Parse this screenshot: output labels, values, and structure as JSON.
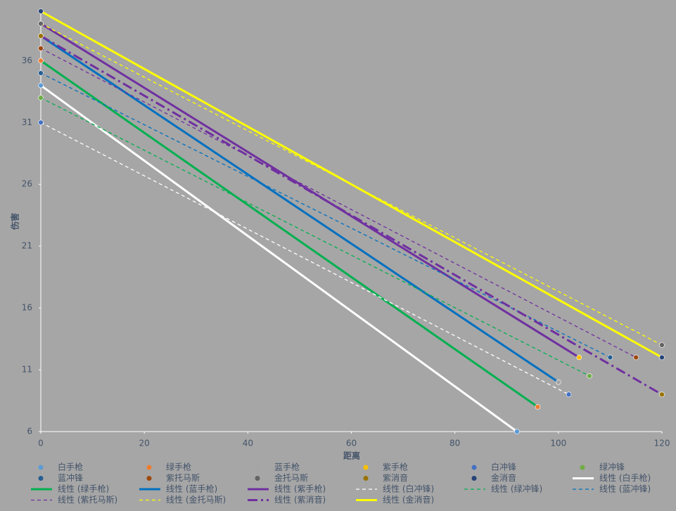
{
  "chart_data": {
    "type": "scatter",
    "x_label": "距离",
    "y_label": "伤害",
    "xlim": [
      0,
      120
    ],
    "xticks": [
      0,
      20,
      40,
      60,
      80,
      100,
      120
    ],
    "ylim": [
      6,
      40
    ],
    "yticks": [
      6,
      11,
      16,
      21,
      26,
      31,
      36
    ],
    "legend": "bottom",
    "series": [
      {
        "name": "白手枪",
        "color": "#5b9bd5",
        "x": [
          0,
          92
        ],
        "values": [
          34,
          6
        ],
        "trendline": {
          "name": "线性 (白手枪)",
          "color": "#ffffff",
          "dash": "solid",
          "weight": "heavy"
        }
      },
      {
        "name": "绿手枪",
        "color": "#ed7d31",
        "x": [
          0,
          96
        ],
        "values": [
          36,
          8
        ],
        "trendline": {
          "name": "线性 (绿手枪)",
          "color": "#00b050",
          "dash": "solid",
          "weight": "heavy"
        }
      },
      {
        "name": "蓝手枪",
        "color": "#a5a5a5",
        "x": [
          0,
          100
        ],
        "values": [
          38,
          10
        ],
        "trendline": {
          "name": "线性 (蓝手枪)",
          "color": "#0070c0",
          "dash": "solid",
          "weight": "heavy"
        }
      },
      {
        "name": "紫手枪",
        "color": "#ffc000",
        "x": [
          0,
          104
        ],
        "values": [
          39,
          12
        ],
        "trendline": {
          "name": "线性 (紫手枪)",
          "color": "#7030a0",
          "dash": "solid",
          "weight": "heavy"
        }
      },
      {
        "name": "白冲锋",
        "color": "#4472c4",
        "x": [
          0,
          102
        ],
        "values": [
          31,
          9
        ],
        "trendline": {
          "name": "线性 (白冲锋)",
          "color": "#ffffff",
          "dash": "dashed",
          "weight": "light"
        }
      },
      {
        "name": "绿冲锋",
        "color": "#70ad47",
        "x": [
          0,
          106
        ],
        "values": [
          33,
          10.5
        ],
        "trendline": {
          "name": "线性 (绿冲锋)",
          "color": "#00b050",
          "dash": "dashed",
          "weight": "light"
        }
      },
      {
        "name": "蓝冲锋",
        "color": "#255e91",
        "x": [
          0,
          110
        ],
        "values": [
          35,
          12
        ],
        "trendline": {
          "name": "线性 (蓝冲锋)",
          "color": "#0070c0",
          "dash": "dashed",
          "weight": "light"
        }
      },
      {
        "name": "紫托马斯",
        "color": "#9e480e",
        "x": [
          0,
          115
        ],
        "values": [
          37,
          12
        ],
        "trendline": {
          "name": "线性 (紫托马斯)",
          "color": "#7030a0",
          "dash": "dashed",
          "weight": "light"
        }
      },
      {
        "name": "金托马斯",
        "color": "#636363",
        "x": [
          0,
          120
        ],
        "values": [
          39,
          13
        ],
        "trendline": {
          "name": "线性 (金托马斯)",
          "color": "#ffff00",
          "dash": "dashed",
          "weight": "light"
        }
      },
      {
        "name": "紫消音",
        "color": "#997300",
        "x": [
          0,
          120
        ],
        "values": [
          38,
          9
        ],
        "trendline": {
          "name": "线性 (紫消音)",
          "color": "#7030a0",
          "dash": "dashdot",
          "weight": "heavy"
        }
      },
      {
        "name": "金消音",
        "color": "#264478",
        "x": [
          0,
          120
        ],
        "values": [
          40,
          12
        ],
        "trendline": {
          "name": "线性 (金消音)",
          "color": "#ffff00",
          "dash": "solid",
          "weight": "heavy"
        }
      }
    ]
  }
}
